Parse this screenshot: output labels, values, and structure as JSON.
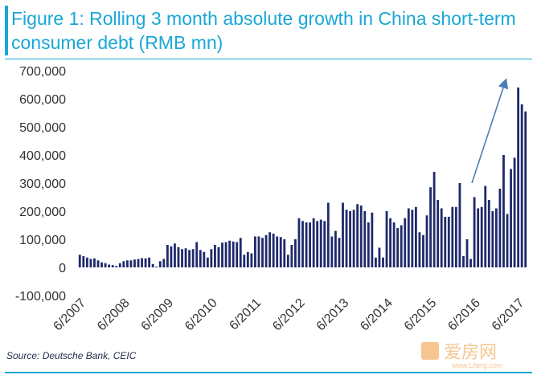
{
  "title": "Figure 1: Rolling 3 month absolute growth in China short-term consumer debt (RMB mn)",
  "source": "Source: Deutsche Bank, CEIC",
  "watermark": {
    "brand": "爱房网",
    "url": "www.Lfang.com"
  },
  "colors": {
    "bar": "#1f2a6b",
    "accent": "#1aa7d6",
    "arrow": "#4a7fb5"
  },
  "chart_data": {
    "type": "bar",
    "ylim": [
      -100000,
      700000
    ],
    "y_ticks": [
      -100000,
      0,
      100000,
      200000,
      300000,
      400000,
      500000,
      600000,
      700000
    ],
    "y_tick_labels": [
      "-100,000",
      "0",
      "100,000",
      "200,000",
      "300,000",
      "400,000",
      "500,000",
      "600,000",
      "700,000"
    ],
    "x_tick_labels": [
      "6/2007",
      "6/2008",
      "6/2009",
      "6/2010",
      "6/2011",
      "6/2012",
      "6/2013",
      "6/2014",
      "6/2015",
      "6/2016",
      "6/2017"
    ],
    "x_tick_index": [
      0,
      12,
      24,
      36,
      48,
      60,
      72,
      84,
      96,
      108,
      120
    ],
    "values": [
      45000,
      40000,
      35000,
      30000,
      32000,
      25000,
      18000,
      15000,
      10000,
      8000,
      5000,
      15000,
      22000,
      25000,
      25000,
      28000,
      30000,
      33000,
      32000,
      35000,
      12000,
      3000,
      22000,
      30000,
      80000,
      75000,
      85000,
      72000,
      65000,
      68000,
      62000,
      65000,
      90000,
      62000,
      55000,
      35000,
      65000,
      80000,
      72000,
      88000,
      90000,
      95000,
      92000,
      90000,
      105000,
      45000,
      55000,
      50000,
      110000,
      110000,
      105000,
      115000,
      125000,
      120000,
      110000,
      108000,
      100000,
      45000,
      80000,
      100000,
      175000,
      165000,
      160000,
      160000,
      175000,
      165000,
      170000,
      165000,
      230000,
      110000,
      130000,
      105000,
      230000,
      205000,
      200000,
      205000,
      225000,
      220000,
      200000,
      160000,
      195000,
      35000,
      70000,
      35000,
      200000,
      175000,
      160000,
      140000,
      150000,
      175000,
      210000,
      205000,
      215000,
      125000,
      115000,
      185000,
      285000,
      340000,
      240000,
      210000,
      180000,
      180000,
      215000,
      215000,
      300000,
      40000,
      100000,
      30000,
      250000,
      210000,
      215000,
      290000,
      240000,
      200000,
      210000,
      280000,
      400000,
      190000,
      350000,
      390000,
      640000,
      580000,
      555000
    ],
    "annotation": "trend arrow"
  }
}
